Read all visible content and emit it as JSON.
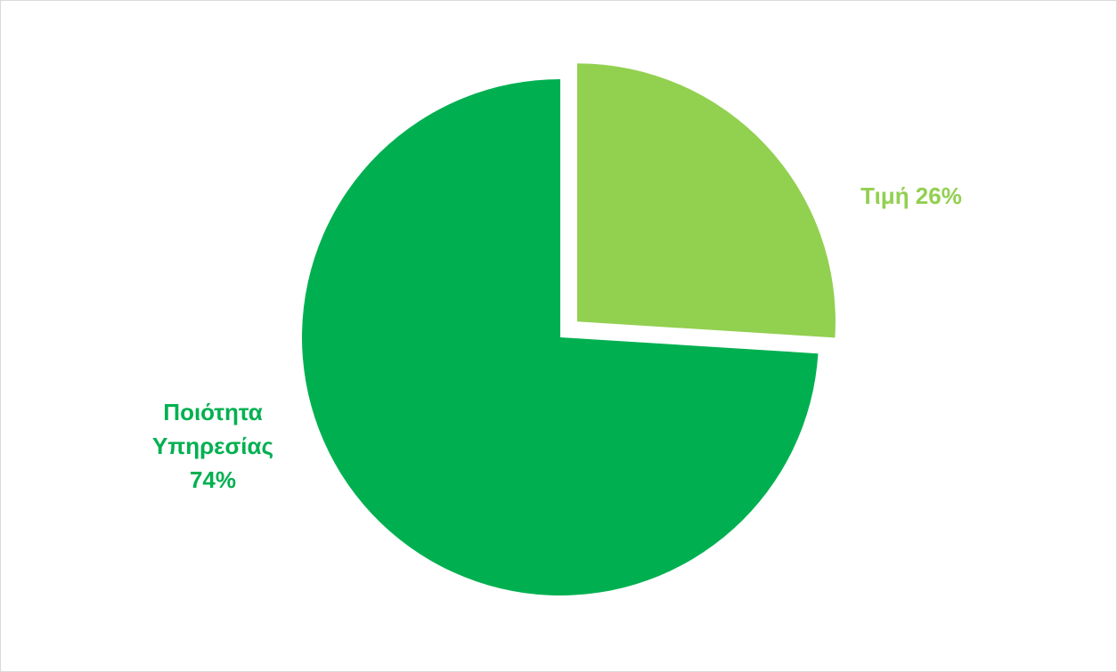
{
  "chart_data": {
    "type": "pie",
    "title": "",
    "slices": [
      {
        "category": "Τιμή",
        "value": 26,
        "percent_label": "26%",
        "color": "#92D050",
        "label_lines": [
          "Τιμή 26%"
        ],
        "exploded": true
      },
      {
        "category": "Ποιότητα Υπηρεσίας",
        "value": 74,
        "percent_label": "74%",
        "color": "#00B050",
        "label_lines": [
          "Ποιότητα",
          "Υπηρεσίας",
          "74%"
        ],
        "exploded": false
      }
    ],
    "legend": "none",
    "start_angle": "12 o'clock, clockwise"
  }
}
